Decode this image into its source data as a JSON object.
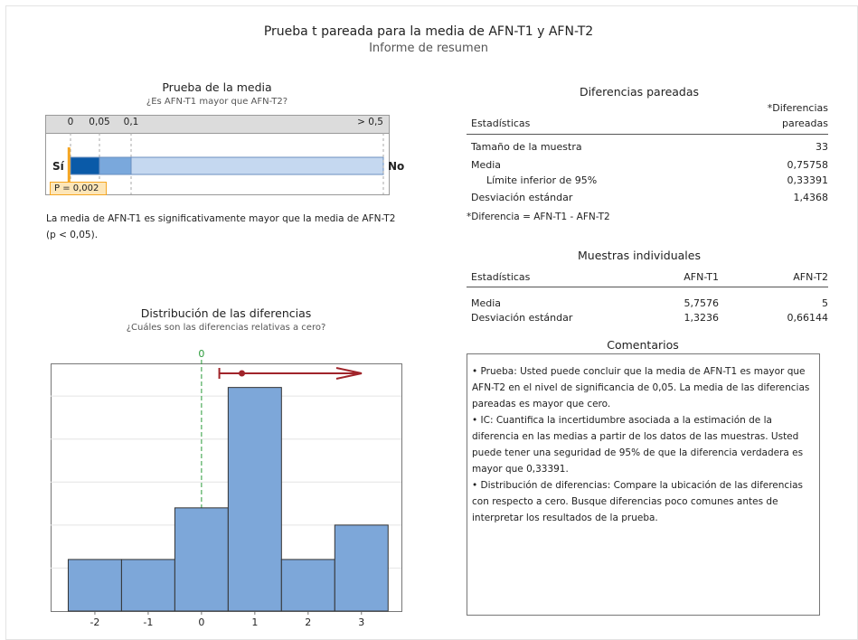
{
  "header": {
    "title": "Prueba t pareada para la media de AFN-T1 y AFN-T2",
    "subtitle": "Informe de resumen"
  },
  "mean_test": {
    "title": "Prueba de la media",
    "question": "¿Es AFN-T1 mayor que AFN-T2?",
    "ticks": [
      0,
      {
        "value": 0.05,
        "label": "0,05"
      },
      {
        "value": 0.1,
        "label": "0,1"
      },
      {
        "value": 0.5,
        "label": "> 0,5"
      }
    ],
    "yes_label": "Sí",
    "no_label": "No",
    "p_value": 0.002,
    "p_label": "P = 0,002",
    "conclusion": "La media de AFN-T1 es significativamente mayor que la media de AFN-T2 (p < 0,05)."
  },
  "distribution": {
    "title": "Distribución de las diferencias",
    "question": "¿Cuáles son las diferencias relativas a cero?",
    "type": "histogram",
    "bins": [
      -2.5,
      -1.5,
      -0.5,
      0.5,
      1.5,
      2.5,
      3.5
    ],
    "counts": [
      3,
      3,
      6,
      13,
      3,
      5
    ],
    "color": "#7da7d9",
    "xlim": [
      -2.83,
      3.75
    ],
    "xticks": [
      -2,
      -1,
      0,
      1,
      2,
      3
    ],
    "ylim": [
      0,
      14.4
    ],
    "ygrid": [
      2.5,
      5,
      7.5,
      10,
      12.5
    ],
    "zero_line": 0,
    "ci": {
      "mean": 0.75758,
      "lower": 0.33391
    }
  },
  "paired": {
    "title": "Diferencias pareadas",
    "stats_header": "Estadísticas",
    "col_header": [
      "*Diferencias",
      "pareadas"
    ],
    "rows": [
      [
        "Tamaño de la muestra",
        "33"
      ],
      [
        "Media",
        "0,75758"
      ],
      [
        "Límite inferior de 95%",
        "0,33391"
      ],
      [
        "Desviación estándar",
        "1,4368"
      ]
    ],
    "footnote": "*Diferencia = AFN-T1 - AFN-T2"
  },
  "individual": {
    "title": "Muestras individuales",
    "headers": [
      "Estadísticas",
      "AFN-T1",
      "AFN-T2"
    ],
    "rows": [
      [
        "Media",
        "5,7576",
        "5"
      ],
      [
        "Desviación estándar",
        "1,3236",
        "0,66144"
      ]
    ]
  },
  "comments": {
    "title": "Comentarios",
    "items": [
      "• Prueba: Usted puede concluir que la media de AFN-T1 es mayor que AFN-T2 en el nivel de significancia de 0,05. La media de las diferencias pareadas es mayor que cero.",
      "• IC: Cuantifica la incertidumbre asociada a la estimación de la diferencia en las medias a partir de los datos de las muestras. Usted puede tener una seguridad de 95% de que la diferencia verdadera es mayor que 0,33391.",
      "• Distribución de diferencias: Compare la ubicación de las diferencias con respecto a cero. Busque diferencias poco comunes antes de interpretar los resultados de la prueba."
    ]
  }
}
